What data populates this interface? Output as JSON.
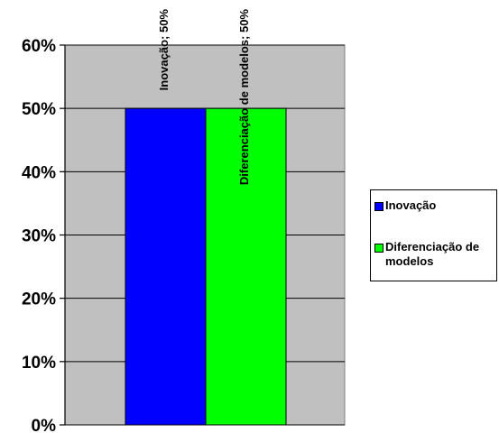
{
  "chart_data": {
    "type": "bar",
    "categories": [
      ""
    ],
    "series": [
      {
        "name": "Inovação",
        "values": [
          50
        ],
        "color": "#0000FF"
      },
      {
        "name": "Diferenciação de modelos",
        "values": [
          50
        ],
        "color": "#00FF00"
      }
    ],
    "data_labels": [
      "Inovação; 50%",
      "Diferenciação de modelos; 50%"
    ],
    "ylim": [
      0,
      60
    ],
    "yticks": [
      "0%",
      "10%",
      "20%",
      "30%",
      "40%",
      "50%",
      "60%"
    ],
    "grid": true,
    "plot_background": "#C0C0C0",
    "legend_position": "right",
    "legend": {
      "items": [
        {
          "label": "Inovação",
          "color": "#0000FF"
        },
        {
          "label": "Diferenciação de modelos",
          "color": "#00FF00"
        }
      ]
    }
  }
}
